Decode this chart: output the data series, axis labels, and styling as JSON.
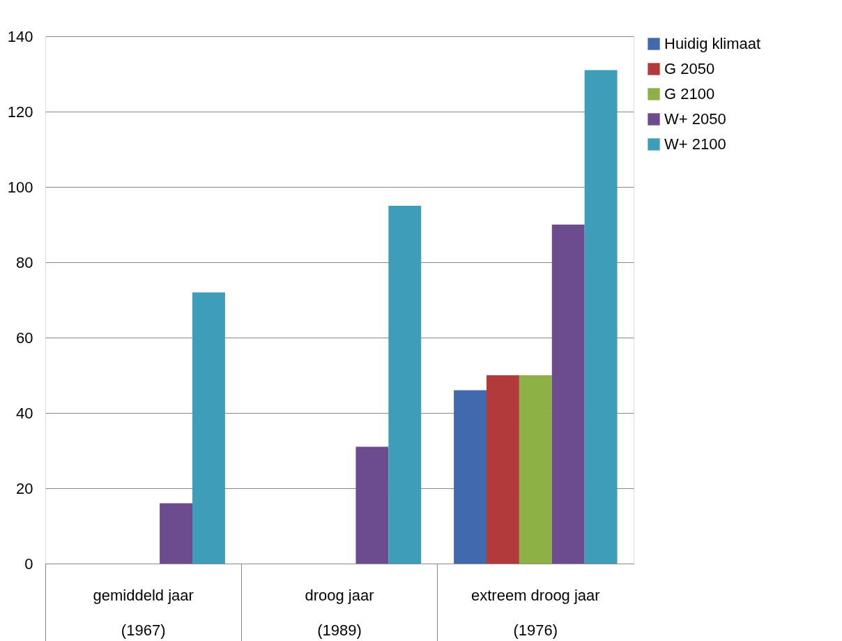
{
  "chart_data": {
    "type": "bar",
    "categories": [
      "gemiddeld jaar\n(1967)",
      "droog jaar\n(1989)",
      "extreem droog jaar\n(1976)"
    ],
    "series": [
      {
        "name": "Huidig klimaat",
        "color": "#4169ae",
        "values": [
          0,
          0,
          46
        ]
      },
      {
        "name": "G 2050",
        "color": "#b33a3a",
        "values": [
          0,
          0,
          50
        ]
      },
      {
        "name": "G 2100",
        "color": "#8db145",
        "values": [
          0,
          0,
          50
        ]
      },
      {
        "name": "W+ 2050",
        "color": "#6c4c8f",
        "values": [
          16,
          31,
          90
        ]
      },
      {
        "name": "W+ 2100",
        "color": "#3e9db8",
        "values": [
          72,
          95,
          131
        ]
      }
    ],
    "ylim": [
      0,
      140
    ],
    "yticks": [
      0,
      20,
      40,
      60,
      80,
      100,
      120,
      140
    ],
    "grid": "y",
    "legend": "right"
  }
}
